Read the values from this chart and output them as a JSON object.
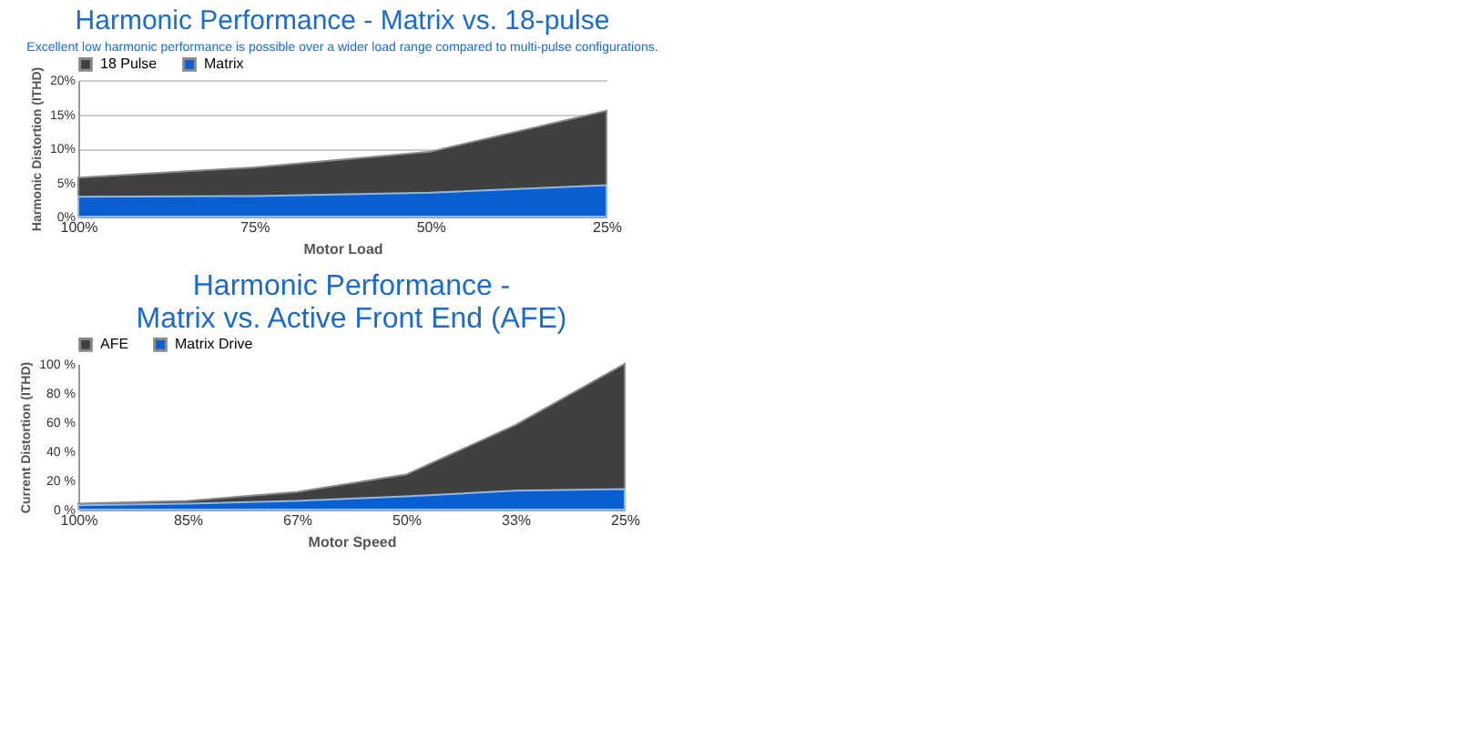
{
  "chart_data": [
    {
      "type": "area",
      "title": "Harmonic Performance - Matrix vs. 18-pulse",
      "subtitle": "Excellent low harmonic performance is possible over a wider load range compared to multi-pulse  configurations.",
      "xlabel": "Motor Load",
      "ylabel": "Harmonic Distortion (ITHD)",
      "categories": [
        "100%",
        "75%",
        "50%",
        "25%"
      ],
      "series": [
        {
          "name": "18 Pulse",
          "color": "#404040",
          "values": [
            5.7,
            7.2,
            9.5,
            15.5
          ]
        },
        {
          "name": "Matrix",
          "color": "#0a5fd0",
          "values": [
            2.9,
            3.0,
            3.5,
            4.6
          ]
        }
      ],
      "ylim": [
        0,
        20
      ],
      "yticks": [
        {
          "value": 0,
          "label": "0%"
        },
        {
          "value": 5,
          "label": "5%"
        },
        {
          "value": 10,
          "label": "10%"
        },
        {
          "value": 15,
          "label": "15%"
        },
        {
          "value": 20,
          "label": "20%"
        }
      ],
      "grid": "y",
      "legend": "top"
    },
    {
      "type": "area",
      "title": "Harmonic Performance - Matrix vs. Active Front End (AFE)",
      "xlabel": "Motor Speed",
      "ylabel": "Current Distortion (ITHD)",
      "categories": [
        "100%",
        "85%",
        "67%",
        "50%",
        "33%",
        "25%"
      ],
      "series": [
        {
          "name": "AFE",
          "color": "#404040",
          "values": [
            4,
            6,
            12,
            24,
            58,
            100
          ]
        },
        {
          "name": "Matrix Drive",
          "color": "#0a5fd0",
          "values": [
            3,
            4,
            6,
            9,
            13,
            14
          ]
        }
      ],
      "ylim": [
        0,
        100
      ],
      "yticks": [
        {
          "value": 0,
          "label": "0 %"
        },
        {
          "value": 20,
          "label": "20 %"
        },
        {
          "value": 40,
          "label": "40 %"
        },
        {
          "value": 60,
          "label": "60 %"
        },
        {
          "value": 80,
          "label": "80 %"
        },
        {
          "value": 100,
          "label": "100 %"
        }
      ],
      "grid": false,
      "legend": "top"
    }
  ]
}
